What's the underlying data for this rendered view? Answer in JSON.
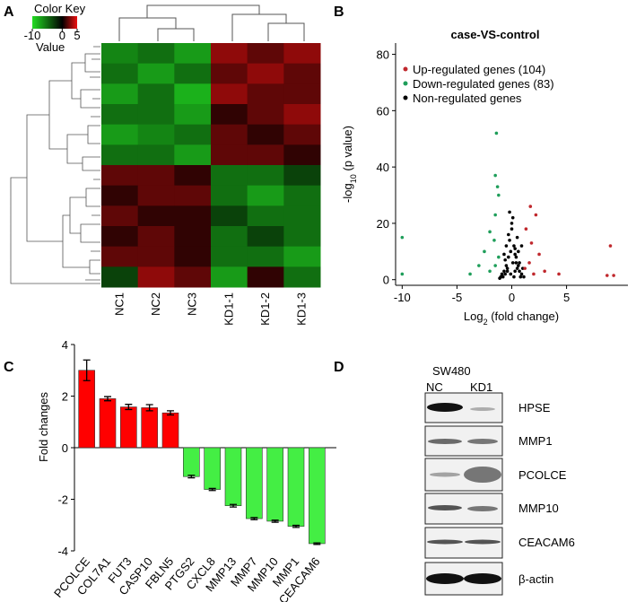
{
  "panel_labels": [
    "A",
    "B",
    "C",
    "D"
  ],
  "chart_data": [
    {
      "type": "heatmap",
      "legend_title": "Color Key",
      "legend_label": "Value",
      "clim": [
        -10,
        5
      ],
      "cticks": [
        -10,
        0,
        5
      ],
      "colormap": [
        "#22dd22",
        "#000000",
        "#ee1111"
      ],
      "columns": [
        "NC1",
        "NC2",
        "NC3",
        "KD1-1",
        "KD1-2",
        "KD1-3"
      ],
      "values": [
        [
          -6,
          -5,
          -7,
          3,
          2,
          3
        ],
        [
          -5,
          -7,
          -5,
          2,
          3,
          2
        ],
        [
          -7,
          -5,
          -8,
          3,
          2,
          2
        ],
        [
          -5,
          -5,
          -7,
          1,
          2,
          3
        ],
        [
          -7,
          -6,
          -5,
          2,
          1,
          2
        ],
        [
          -5,
          -5,
          -7,
          2,
          2,
          1
        ],
        [
          2,
          2,
          1,
          -5,
          -5,
          -3
        ],
        [
          1,
          2,
          2,
          -5,
          -7,
          -5
        ],
        [
          2,
          1,
          1,
          -3,
          -5,
          -5
        ],
        [
          1,
          2,
          1,
          -5,
          -3,
          -5
        ],
        [
          2,
          2,
          1,
          -5,
          -5,
          -7
        ],
        [
          -3,
          3,
          2,
          -7,
          1,
          -5
        ]
      ]
    },
    {
      "type": "scatter",
      "title": "case-VS-control",
      "xlabel": [
        "Log",
        "2",
        " (fold change)"
      ],
      "ylabel": [
        "-log",
        "10",
        " (p value)"
      ],
      "xlim": [
        -10.6,
        10.6
      ],
      "ylim": [
        -2,
        84
      ],
      "xticks": [
        -10,
        -5,
        0,
        5
      ],
      "yticks": [
        0,
        20,
        40,
        60,
        80
      ],
      "series": [
        {
          "name": "Up-regulated genes (104)",
          "color": "#c0282d",
          "x": [
            9,
            8.7,
            9.3,
            1.7,
            2.2,
            1.3,
            1.8,
            2.5,
            1.6,
            3,
            2,
            4.3,
            1.2
          ],
          "y": [
            12,
            1.5,
            1.5,
            26,
            23,
            18,
            13,
            9,
            6,
            3,
            2,
            2,
            4
          ]
        },
        {
          "name": "Down-regulated genes (83)",
          "color": "#1f9e5a",
          "x": [
            -10,
            -10,
            -1.4,
            -1.5,
            -1.3,
            -1.2,
            -1.5,
            -2,
            -1.6,
            -2.5,
            -3,
            -2,
            -1.5,
            -3.8,
            -1.2
          ],
          "y": [
            15,
            2,
            52,
            37,
            33,
            30,
            23,
            17,
            14,
            10,
            5,
            3,
            5,
            2,
            8
          ]
        },
        {
          "name": "Non-regulated genes",
          "color": "#000000",
          "x": [
            -0.9,
            -0.7,
            -0.5,
            -0.3,
            -0.1,
            0.1,
            0.3,
            0.5,
            0.7,
            0.9,
            -0.8,
            -0.6,
            -0.4,
            -0.2,
            0,
            0.2,
            0.4,
            0.6,
            0.8,
            -0.5,
            -0.3,
            0,
            0.3,
            0.5,
            -0.2,
            0.1,
            0.4,
            -0.6,
            0.6,
            -1,
            1,
            -0.4,
            0.2,
            0.7,
            -0.1,
            0.9,
            1.1,
            -1.1,
            0.3,
            -0.7
          ],
          "y": [
            2,
            3,
            5,
            8,
            10,
            6,
            9,
            4,
            3,
            2,
            1,
            2,
            4,
            14,
            18,
            12,
            6,
            5,
            1,
            12,
            16,
            20,
            11,
            15,
            24,
            22,
            8,
            7,
            10,
            1,
            4,
            3,
            1,
            6,
            2,
            12,
            1,
            0.5,
            3,
            9
          ]
        }
      ]
    },
    {
      "type": "bar",
      "ylabel": "Fold changes",
      "categories": [
        "PCOLCE",
        "COL7A1",
        "FUT3",
        "CASP10",
        "FBLN5",
        "PTGS2",
        "CXCL8",
        "MMP13",
        "MMP7",
        "MMP10",
        "MMP1",
        "CEACAM6"
      ],
      "values": [
        3.0,
        1.9,
        1.58,
        1.55,
        1.35,
        -1.12,
        -1.62,
        -2.25,
        -2.75,
        -2.85,
        -3.05,
        -3.72
      ],
      "errors": [
        0.4,
        0.08,
        0.1,
        0.12,
        0.08,
        0.05,
        0.04,
        0.05,
        0.04,
        0.04,
        0.04,
        0.03
      ],
      "colors": {
        "positive": "#ff0000",
        "negative": "#44ee44"
      },
      "ylim": [
        -4,
        4
      ],
      "yticks": [
        -4,
        -2,
        0,
        2,
        4
      ]
    }
  ],
  "blot": {
    "title": "SW480",
    "lanes": [
      "NC",
      "KD1"
    ],
    "proteins": [
      "HPSE",
      "MMP1",
      "PCOLCE",
      "MMP10",
      "CEACAM6",
      "β-actin"
    ]
  }
}
